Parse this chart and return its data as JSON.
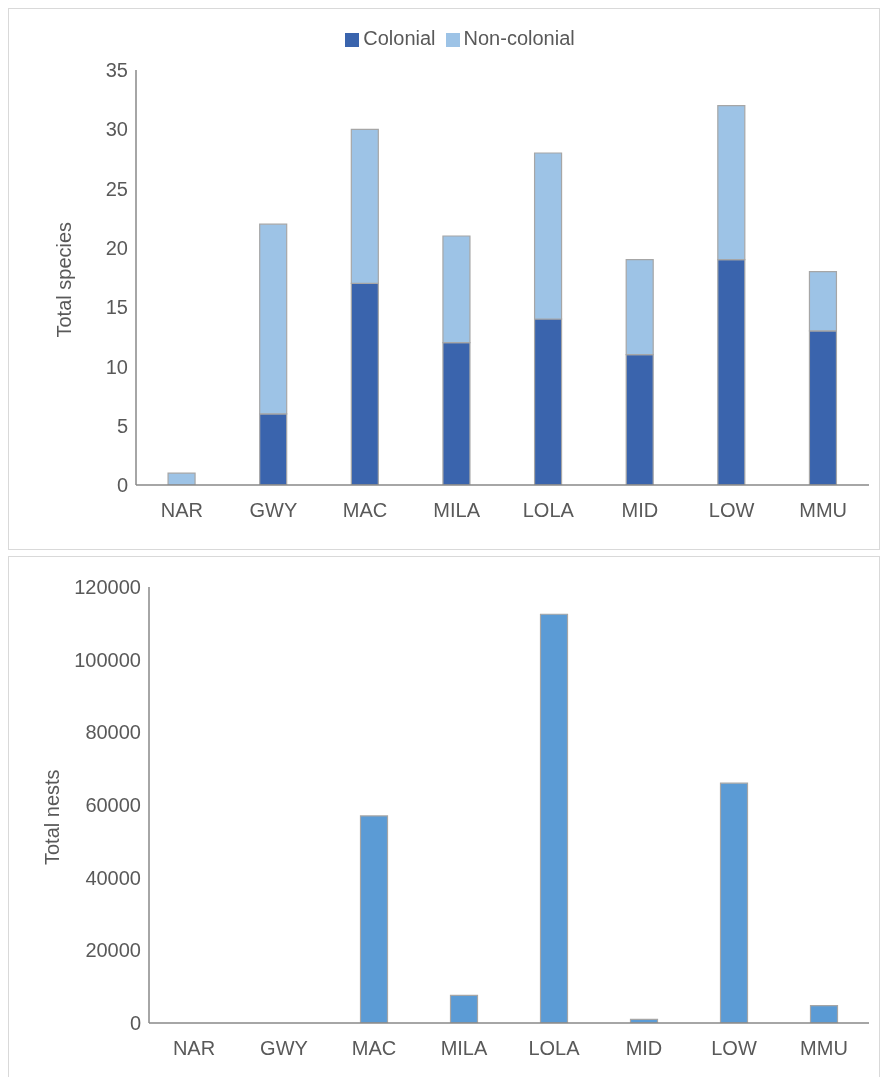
{
  "chart_data": [
    {
      "type": "bar",
      "stacked": true,
      "categories": [
        "NAR",
        "GWY",
        "MAC",
        "MILA",
        "LOLA",
        "MID",
        "LOW",
        "MMU"
      ],
      "series": [
        {
          "name": "Colonial",
          "color": "#3a64ad",
          "values": [
            0,
            6,
            17,
            12,
            14,
            11,
            19,
            13
          ]
        },
        {
          "name": "Non-colonial",
          "color": "#9dc3e6",
          "values": [
            1,
            16,
            13,
            9,
            14,
            8,
            13,
            5
          ]
        }
      ],
      "ylabel": "Total species",
      "ylim": [
        0,
        35
      ],
      "yticks": [
        0,
        5,
        10,
        15,
        20,
        25,
        30,
        35
      ],
      "legend": "top",
      "grid": false
    },
    {
      "type": "bar",
      "categories": [
        "NAR",
        "GWY",
        "MAC",
        "MILA",
        "LOLA",
        "MID",
        "LOW",
        "MMU"
      ],
      "values": [
        0,
        null,
        57000,
        7600,
        112500,
        1000,
        66000,
        4800
      ],
      "color": "#5b9bd5",
      "ylabel": "Total nests",
      "ylim": [
        0,
        120000
      ],
      "yticks": [
        0,
        20000,
        40000,
        60000,
        80000,
        100000,
        120000
      ],
      "grid": false
    }
  ]
}
